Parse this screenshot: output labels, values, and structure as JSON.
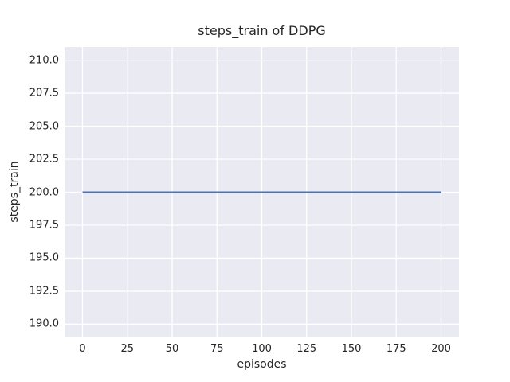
{
  "chart_data": {
    "type": "line",
    "title": "steps_train of DDPG",
    "xlabel": "episodes",
    "ylabel": "steps_train",
    "series": [
      {
        "name": "steps_train",
        "x": [
          0,
          200
        ],
        "y": [
          200,
          200
        ],
        "color": "#4c72b0",
        "line_width": 2
      }
    ],
    "xlim": [
      -10,
      210
    ],
    "ylim": [
      189,
      211
    ],
    "xticks": [
      0,
      25,
      50,
      75,
      100,
      125,
      150,
      175,
      200
    ],
    "xtick_labels": [
      "0",
      "25",
      "50",
      "75",
      "100",
      "125",
      "150",
      "175",
      "200"
    ],
    "yticks": [
      190.0,
      192.5,
      195.0,
      197.5,
      200.0,
      202.5,
      205.0,
      207.5,
      210.0
    ],
    "ytick_labels": [
      "190.0",
      "192.5",
      "195.0",
      "197.5",
      "200.0",
      "202.5",
      "205.0",
      "207.5",
      "210.0"
    ],
    "grid": true,
    "legend": "none",
    "style": {
      "figure_bg": "#ffffff",
      "axes_bg": "#eaeaf2",
      "grid_color": "#ffffff",
      "text_color": "#262626",
      "line_color": "#4c72b0"
    }
  }
}
